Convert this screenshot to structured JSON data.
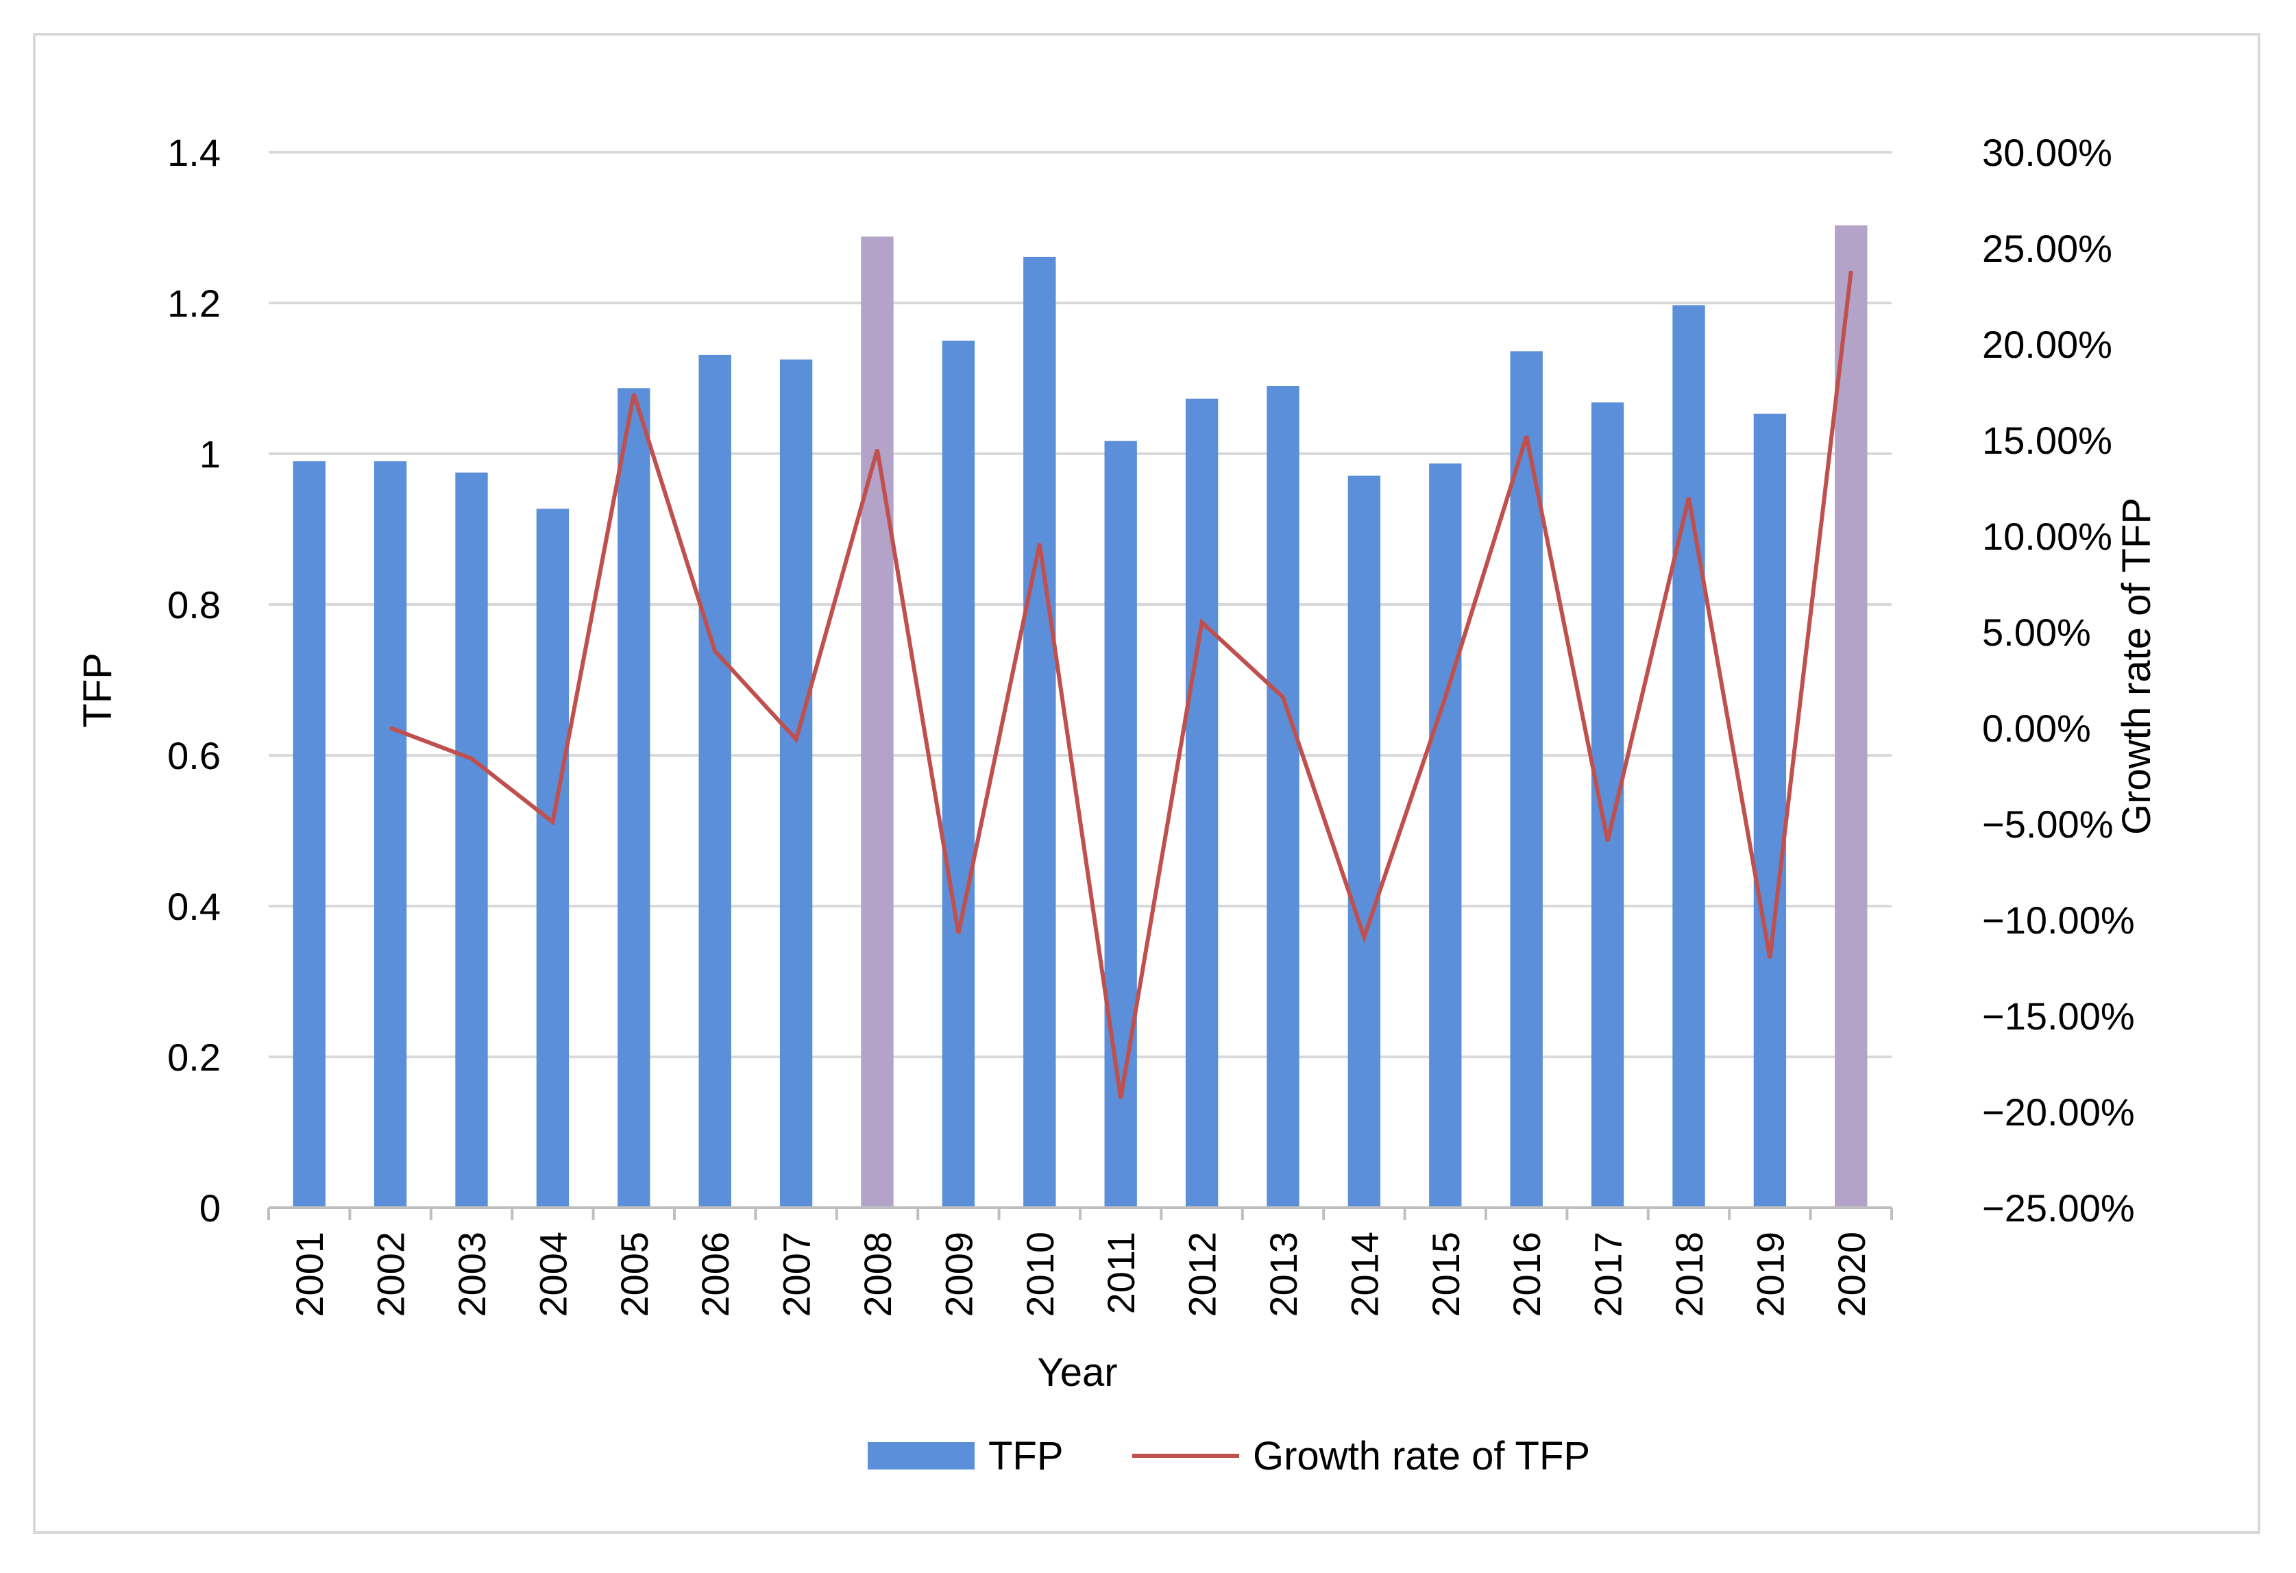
{
  "chart_data": {
    "type": "bar",
    "categories": [
      "2001",
      "2002",
      "2003",
      "2004",
      "2005",
      "2006",
      "2007",
      "2008",
      "2009",
      "2010",
      "2011",
      "2012",
      "2013",
      "2014",
      "2015",
      "2016",
      "2017",
      "2018",
      "2019",
      "2020"
    ],
    "series": [
      {
        "name": "TFP",
        "kind": "bar",
        "axis": "left",
        "color": "#5b8fd9",
        "highlight_color": "#b3a3c9",
        "highlight_categories": [
          "2008",
          "2020"
        ],
        "values": [
          0.99,
          0.99,
          0.975,
          0.927,
          1.087,
          1.131,
          1.125,
          1.288,
          1.15,
          1.261,
          1.017,
          1.073,
          1.09,
          0.971,
          0.987,
          1.136,
          1.068,
          1.197,
          1.053,
          1.303
        ]
      },
      {
        "name": "Growth rate of TFP",
        "kind": "line",
        "axis": "right",
        "color": "#c0504d",
        "values": [
          null,
          0.0,
          -1.6,
          -4.9,
          17.4,
          4.0,
          -0.6,
          14.5,
          -10.7,
          9.6,
          -19.3,
          5.5,
          1.6,
          -10.9,
          1.6,
          15.2,
          -5.9,
          12.0,
          -12.0,
          23.8
        ]
      }
    ],
    "title": "",
    "xlabel": "Year",
    "ylabel": "TFP",
    "y2label": "Growth rate  of TFP",
    "ylim": [
      0,
      1.4
    ],
    "y2lim": [
      -25,
      30
    ],
    "yticks": [
      "0",
      "0.2",
      "0.4",
      "0.6",
      "0.8",
      "1",
      "1.2",
      "1.4"
    ],
    "y2ticks": [
      "−25.00%",
      "−20.00%",
      "−15.00%",
      "−10.00%",
      "−5.00%",
      "0.00%",
      "5.00%",
      "10.00%",
      "15.00%",
      "20.00%",
      "25.00%",
      "30.00%"
    ],
    "grid": true,
    "legend": {
      "position": "bottom",
      "items": [
        "TFP",
        "Growth rate of TFP"
      ]
    }
  }
}
